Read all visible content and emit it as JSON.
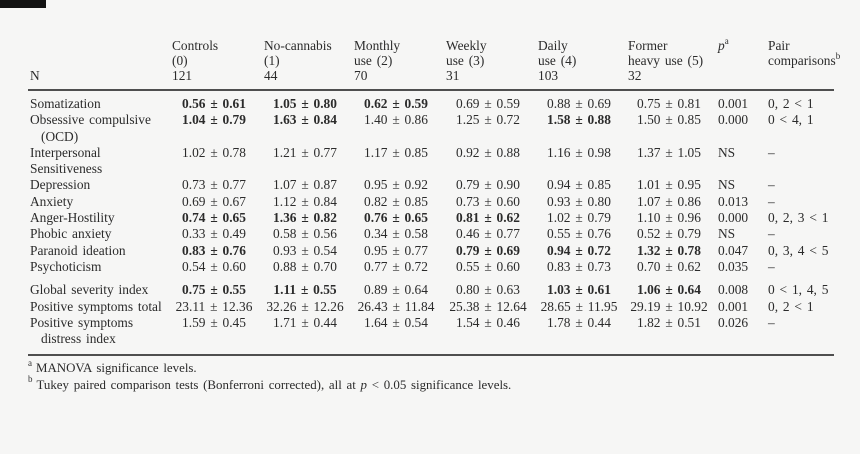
{
  "page": {
    "background_color": "#f6f6f5",
    "text_color": "#2b2b2b",
    "rule_color": "#4f4f4f",
    "corner_bar_color": "#131313"
  },
  "table": {
    "n_label": "N",
    "group_columns": [
      {
        "line1": "Controls",
        "line2": "(0)",
        "n": "121"
      },
      {
        "line1": "No-cannabis",
        "line2": "(1)",
        "n": "44"
      },
      {
        "line1": "Monthly",
        "line2": "use (2)",
        "n": "70"
      },
      {
        "line1": "Weekly",
        "line2": "use (3)",
        "n": "31"
      },
      {
        "line1": "Daily",
        "line2": "use (4)",
        "n": "103"
      },
      {
        "line1": "Former",
        "line2": "heavy use (5)",
        "n": "32"
      }
    ],
    "p_header": {
      "label": "p",
      "sup": "a"
    },
    "pair_header": {
      "line1": "Pair",
      "line2": "comparisons",
      "sup": "b"
    },
    "rows": [
      {
        "label": "Somatization",
        "label2": "",
        "indent2": false,
        "gap_before": false,
        "values": [
          "0.56 ± 0.61",
          "1.05 ± 0.80",
          "0.62 ± 0.59",
          "0.69 ± 0.59",
          "0.88 ± 0.69",
          "0.75 ± 0.81"
        ],
        "bold": [
          true,
          true,
          true,
          false,
          false,
          false
        ],
        "p": "0.001",
        "pair": "0, 2 < 1"
      },
      {
        "label": "Obsessive compulsive",
        "label2": "(OCD)",
        "indent2": true,
        "gap_before": false,
        "values": [
          "1.04 ± 0.79",
          "1.63 ± 0.84",
          "1.40 ± 0.86",
          "1.25 ± 0.72",
          "1.58 ± 0.88",
          "1.50 ± 0.85"
        ],
        "bold": [
          true,
          true,
          false,
          false,
          true,
          false
        ],
        "p": "0.000",
        "pair": "0 < 4, 1"
      },
      {
        "label": "Interpersonal",
        "label2": "Sensitiveness",
        "indent2": false,
        "gap_before": false,
        "values": [
          "1.02 ± 0.78",
          "1.21 ± 0.77",
          "1.17 ± 0.85",
          "0.92 ± 0.88",
          "1.16 ± 0.98",
          "1.37 ± 1.05"
        ],
        "bold": [
          false,
          false,
          false,
          false,
          false,
          false
        ],
        "p": "NS",
        "pair": "–"
      },
      {
        "label": "Depression",
        "label2": "",
        "indent2": false,
        "gap_before": false,
        "values": [
          "0.73 ± 0.77",
          "1.07 ± 0.87",
          "0.95 ± 0.92",
          "0.79 ± 0.90",
          "0.94 ± 0.85",
          "1.01 ± 0.95"
        ],
        "bold": [
          false,
          false,
          false,
          false,
          false,
          false
        ],
        "p": "NS",
        "pair": "–"
      },
      {
        "label": "Anxiety",
        "label2": "",
        "indent2": false,
        "gap_before": false,
        "values": [
          "0.69 ± 0.67",
          "1.12 ± 0.84",
          "0.82 ± 0.85",
          "0.73 ± 0.60",
          "0.93 ± 0.80",
          "1.07 ± 0.86"
        ],
        "bold": [
          false,
          false,
          false,
          false,
          false,
          false
        ],
        "p": "0.013",
        "pair": "–"
      },
      {
        "label": "Anger-Hostility",
        "label2": "",
        "indent2": false,
        "gap_before": false,
        "values": [
          "0.74 ± 0.65",
          "1.36 ± 0.82",
          "0.76 ± 0.65",
          "0.81 ± 0.62",
          "1.02 ± 0.79",
          "1.10 ± 0.96"
        ],
        "bold": [
          true,
          true,
          true,
          true,
          false,
          false
        ],
        "p": "0.000",
        "pair": "0, 2, 3 < 1"
      },
      {
        "label": "Phobic anxiety",
        "label2": "",
        "indent2": false,
        "gap_before": false,
        "values": [
          "0.33 ± 0.49",
          "0.58 ± 0.56",
          "0.34 ± 0.58",
          "0.46 ± 0.77",
          "0.55 ± 0.76",
          "0.52 ± 0.79"
        ],
        "bold": [
          false,
          false,
          false,
          false,
          false,
          false
        ],
        "p": "NS",
        "pair": "–"
      },
      {
        "label": "Paranoid ideation",
        "label2": "",
        "indent2": false,
        "gap_before": false,
        "values": [
          "0.83 ± 0.76",
          "0.93 ± 0.54",
          "0.95 ± 0.77",
          "0.79 ± 0.69",
          "0.94 ± 0.72",
          "1.32 ± 0.78"
        ],
        "bold": [
          true,
          false,
          false,
          true,
          true,
          true
        ],
        "p": "0.047",
        "pair": "0, 3, 4 < 5"
      },
      {
        "label": "Psychoticism",
        "label2": "",
        "indent2": false,
        "gap_before": false,
        "values": [
          "0.54 ± 0.60",
          "0.88 ± 0.70",
          "0.77 ± 0.72",
          "0.55 ± 0.60",
          "0.83 ± 0.73",
          "0.70 ± 0.62"
        ],
        "bold": [
          false,
          false,
          false,
          false,
          false,
          false
        ],
        "p": "0.035",
        "pair": "–"
      },
      {
        "label": "Global severity index",
        "label2": "",
        "indent2": false,
        "gap_before": true,
        "values": [
          "0.75 ± 0.55",
          "1.11 ± 0.55",
          "0.89 ± 0.64",
          "0.80 ± 0.63",
          "1.03 ± 0.61",
          "1.06 ± 0.64"
        ],
        "bold": [
          true,
          true,
          false,
          false,
          true,
          true
        ],
        "p": "0.008",
        "pair": "0 < 1, 4, 5"
      },
      {
        "label": "Positive symptoms total",
        "label2": "",
        "indent2": false,
        "gap_before": false,
        "values": [
          "23.11 ± 12.36",
          "32.26 ± 12.26",
          "26.43 ± 11.84",
          "25.38 ± 12.64",
          "28.65 ± 11.95",
          "29.19 ± 10.92"
        ],
        "bold": [
          false,
          false,
          false,
          false,
          false,
          false
        ],
        "p": "0.001",
        "pair": "0, 2 < 1"
      },
      {
        "label": "Positive symptoms",
        "label2": "distress index",
        "indent2": true,
        "gap_before": false,
        "values": [
          "1.59 ± 0.45",
          "1.71 ± 0.44",
          "1.64 ± 0.54",
          "1.54 ± 0.46",
          "1.78 ± 0.44",
          "1.82 ± 0.51"
        ],
        "bold": [
          false,
          false,
          false,
          false,
          false,
          false
        ],
        "p": "0.026",
        "pair": "–"
      }
    ]
  },
  "footnotes": {
    "a": {
      "marker": "a",
      "text": "MANOVA significance levels."
    },
    "b": {
      "marker": "b",
      "text_pre": "Tukey paired comparison tests (Bonferroni corrected), all at ",
      "italic_var": "p",
      "text_post": " < 0.05 significance levels."
    }
  }
}
